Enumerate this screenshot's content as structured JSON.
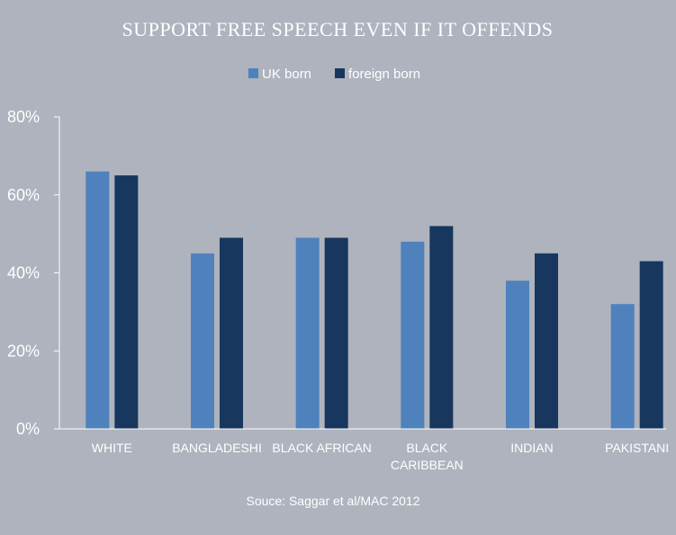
{
  "chart_data": {
    "type": "bar",
    "title": "SUPPORT FREE SPEECH EVEN IF IT OFFENDS",
    "categories": [
      [
        "WHITE"
      ],
      [
        "BANGLADESHI"
      ],
      [
        "BLACK AFRICAN"
      ],
      [
        "BLACK",
        "CARIBBEAN"
      ],
      [
        "INDIAN"
      ],
      [
        "PAKISTANI"
      ]
    ],
    "series": [
      {
        "name": "UK born",
        "values": [
          66,
          45,
          49,
          48,
          38,
          32
        ]
      },
      {
        "name": "foreign born",
        "values": [
          65,
          49,
          49,
          52,
          45,
          43
        ]
      }
    ],
    "yticks": [
      "0%",
      "20%",
      "40%",
      "60%",
      "80%"
    ],
    "ytick_values": [
      0,
      20,
      40,
      60,
      80
    ],
    "ylim": [
      0,
      80
    ],
    "grid": false,
    "legend_position": "top-center",
    "source": "Souce: Saggar et al/MAC 2012"
  },
  "colors": {
    "background": "#aeb3bd",
    "uk_born": "#4f81bd",
    "foreign_born": "#17375e",
    "axis": "#ffffff",
    "text": "#ffffff"
  }
}
